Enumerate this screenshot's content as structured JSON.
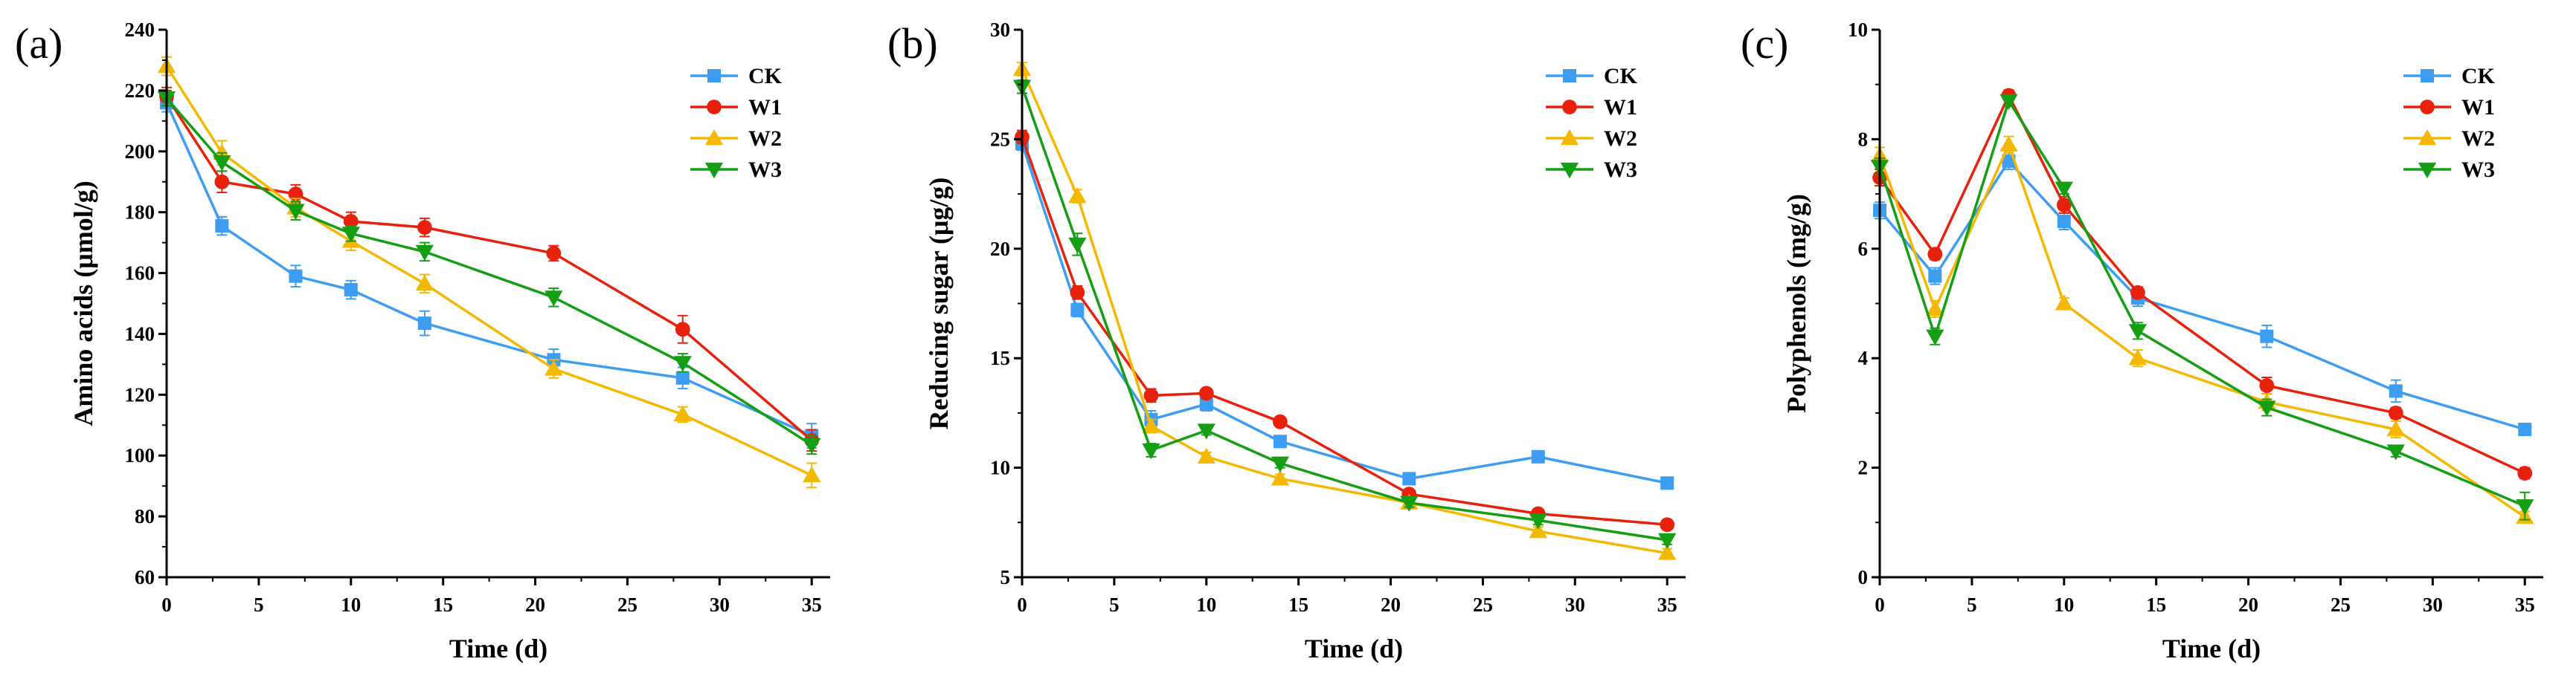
{
  "colors": {
    "CK": "#3d9df3",
    "W1": "#e8210c",
    "W2": "#f5b800",
    "W3": "#149e14"
  },
  "chart_data": [
    {
      "panel": "(a)",
      "type": "line",
      "title": "",
      "xlabel": "Time (d)",
      "ylabel": "Amino acids (μmol/g)",
      "xlim": [
        0,
        36
      ],
      "ylim": [
        60,
        240
      ],
      "xticks": [
        0,
        5,
        10,
        15,
        20,
        25,
        30,
        35
      ],
      "yticks": [
        60,
        80,
        100,
        120,
        140,
        160,
        180,
        200,
        220,
        240
      ],
      "legend_position": "top-right",
      "x": [
        0,
        3,
        7,
        10,
        14,
        21,
        28,
        35
      ],
      "series": [
        {
          "name": "CK",
          "marker": "square",
          "values": [
            216,
            175.5,
            159,
            154.5,
            143.5,
            131.5,
            125.5,
            106.5
          ],
          "errors": [
            3,
            3,
            3.5,
            3,
            4,
            3.5,
            3.5,
            4
          ]
        },
        {
          "name": "W1",
          "marker": "circle",
          "values": [
            218,
            190,
            186,
            177,
            175,
            166.5,
            141.5,
            105
          ],
          "errors": [
            3,
            3.5,
            3,
            3,
            3,
            2.5,
            4.5,
            3.5
          ]
        },
        {
          "name": "W2",
          "marker": "triangle-up",
          "values": [
            228,
            199.5,
            181.5,
            170.5,
            156.5,
            128.5,
            113.5,
            93.5
          ],
          "errors": [
            3,
            4,
            3,
            3,
            3,
            3,
            2.5,
            4
          ]
        },
        {
          "name": "W3",
          "marker": "triangle-down",
          "values": [
            217.5,
            196.5,
            180.5,
            173,
            167,
            152,
            130.5,
            103.5
          ],
          "errors": [
            2.5,
            3,
            3,
            2.5,
            3,
            3,
            3,
            3
          ]
        }
      ]
    },
    {
      "panel": "(b)",
      "type": "line",
      "title": "",
      "xlabel": "Time (d)",
      "ylabel": "Reducing sugar (μg/g)",
      "xlim": [
        0,
        36
      ],
      "ylim": [
        5,
        30
      ],
      "xticks": [
        0,
        5,
        10,
        15,
        20,
        25,
        30,
        35
      ],
      "yticks": [
        5,
        10,
        15,
        20,
        25,
        30
      ],
      "legend_position": "top-right",
      "x": [
        0,
        3,
        7,
        10,
        14,
        21,
        28,
        35
      ],
      "series": [
        {
          "name": "CK",
          "marker": "square",
          "values": [
            24.8,
            17.2,
            12.2,
            12.9,
            11.2,
            9.5,
            10.5,
            9.3
          ],
          "errors": [
            0.3,
            0.3,
            0.4,
            0.3,
            0.2,
            0.2,
            0.2,
            0.2
          ]
        },
        {
          "name": "W1",
          "marker": "circle",
          "values": [
            25.1,
            18.0,
            13.3,
            13.4,
            12.1,
            8.8,
            7.9,
            7.4
          ],
          "errors": [
            0.3,
            0.3,
            0.3,
            0.2,
            0.2,
            0.2,
            0.2,
            0.2
          ]
        },
        {
          "name": "W2",
          "marker": "triangle-up",
          "values": [
            28.2,
            22.4,
            11.9,
            10.5,
            9.5,
            8.4,
            7.1,
            6.1
          ],
          "errors": [
            0.3,
            0.3,
            0.3,
            0.2,
            0.2,
            0.2,
            0.2,
            0.2
          ]
        },
        {
          "name": "W3",
          "marker": "triangle-down",
          "values": [
            27.4,
            20.2,
            10.8,
            11.7,
            10.2,
            8.4,
            7.6,
            6.7
          ],
          "errors": [
            0.3,
            0.5,
            0.3,
            0.2,
            0.2,
            0.2,
            0.2,
            0.2
          ]
        }
      ]
    },
    {
      "panel": "(c)",
      "type": "line",
      "title": "",
      "xlabel": "Time (d)",
      "ylabel": "Polyphenols (mg/g)",
      "xlim": [
        0,
        36
      ],
      "ylim": [
        0,
        10
      ],
      "xticks": [
        0,
        5,
        10,
        15,
        20,
        25,
        30,
        35
      ],
      "yticks": [
        0,
        2,
        4,
        6,
        8,
        10
      ],
      "legend_position": "top-right",
      "x": [
        0,
        3,
        7,
        10,
        14,
        21,
        28,
        35
      ],
      "series": [
        {
          "name": "CK",
          "marker": "square",
          "values": [
            6.7,
            5.5,
            7.6,
            6.5,
            5.1,
            4.4,
            3.4,
            2.7
          ],
          "errors": [
            0.15,
            0.15,
            0.15,
            0.15,
            0.15,
            0.2,
            0.2,
            0.1
          ]
        },
        {
          "name": "W1",
          "marker": "circle",
          "values": [
            7.3,
            5.9,
            8.8,
            6.8,
            5.2,
            3.5,
            3.0,
            1.9
          ],
          "errors": [
            0.15,
            0.1,
            0.1,
            0.15,
            0.1,
            0.15,
            0.1,
            0.1
          ]
        },
        {
          "name": "W2",
          "marker": "triangle-up",
          "values": [
            7.7,
            4.9,
            7.9,
            5.0,
            4.0,
            3.2,
            2.7,
            1.1
          ],
          "errors": [
            0.15,
            0.15,
            0.15,
            0.1,
            0.15,
            0.15,
            0.15,
            0.1
          ]
        },
        {
          "name": "W3",
          "marker": "triangle-down",
          "values": [
            7.5,
            4.4,
            8.7,
            7.1,
            4.5,
            3.1,
            2.3,
            1.3
          ],
          "errors": [
            0.15,
            0.15,
            0.1,
            0.1,
            0.15,
            0.15,
            0.1,
            0.25
          ]
        }
      ]
    }
  ]
}
